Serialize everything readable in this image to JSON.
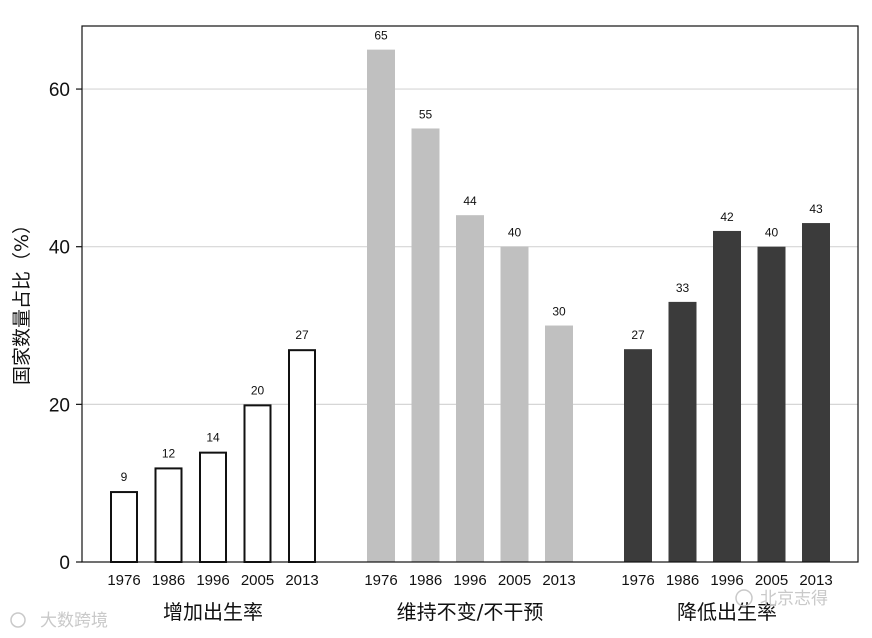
{
  "chart_data": {
    "type": "bar",
    "ylabel": "国家数量占比（%）",
    "ylim": [
      0,
      68
    ],
    "yticks": [
      0,
      20,
      40,
      60
    ],
    "grid": true,
    "groups": [
      {
        "name": "增加出生率",
        "style": "outline",
        "color": "#ffffff",
        "categories": [
          "1976",
          "1986",
          "1996",
          "2005",
          "2013"
        ],
        "values": [
          9,
          12,
          14,
          20,
          27
        ]
      },
      {
        "name": "维持不变/不干预",
        "style": "fill",
        "color": "#c0c0c0",
        "categories": [
          "1976",
          "1986",
          "1996",
          "2005",
          "2013"
        ],
        "values": [
          65,
          55,
          44,
          40,
          30
        ]
      },
      {
        "name": "降低出生率",
        "style": "fill",
        "color": "#3b3b3b",
        "categories": [
          "1976",
          "1986",
          "1996",
          "2005",
          "2013"
        ],
        "values": [
          27,
          33,
          42,
          40,
          43
        ]
      }
    ]
  },
  "watermarks": {
    "left": "大数跨境",
    "right": "北京志得"
  }
}
